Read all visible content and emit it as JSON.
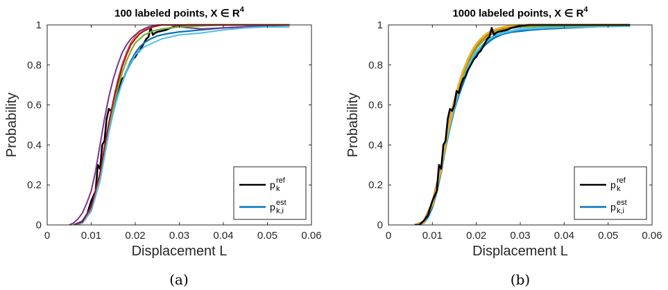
{
  "chart_data": [
    {
      "type": "line",
      "title": "100 labeled points, X ∈ R",
      "title_sup": "4",
      "xlabel": "Displacement L",
      "ylabel": "Probability",
      "caption": "(a)",
      "xlim": [
        0,
        0.06
      ],
      "ylim": [
        0,
        1
      ],
      "xticks": [
        "0",
        "0.01",
        "0.02",
        "0.03",
        "0.04",
        "0.05",
        "0.06"
      ],
      "yticks": [
        "0",
        "0.2",
        "0.4",
        "0.6",
        "0.8",
        "1"
      ],
      "grid": false,
      "legend_placement": "bottom-right",
      "legend": [
        {
          "base": "p",
          "sup": "ref",
          "sub": "k",
          "color": "#000000"
        },
        {
          "base": "p",
          "sup": "est",
          "sub": "k,i",
          "color": "#0072BD"
        }
      ],
      "series": [
        {
          "name": "p_k^ref",
          "color": "#000000",
          "width": 2.6,
          "x": [
            0.006,
            0.007,
            0.008,
            0.009,
            0.01,
            0.011,
            0.0115,
            0.012,
            0.0125,
            0.013,
            0.0135,
            0.014,
            0.0145,
            0.015,
            0.0155,
            0.016,
            0.0165,
            0.017,
            0.0175,
            0.018,
            0.0185,
            0.019,
            0.0195,
            0.02,
            0.0205,
            0.021,
            0.0215,
            0.022,
            0.0225,
            0.023,
            0.0235,
            0.024,
            0.0245,
            0.025,
            0.026,
            0.027,
            0.028,
            0.029,
            0.03,
            0.032,
            0.035,
            0.04,
            0.045,
            0.05,
            0.055
          ],
          "y": [
            0.0,
            0.0,
            0.02,
            0.05,
            0.12,
            0.17,
            0.3,
            0.28,
            0.4,
            0.42,
            0.53,
            0.58,
            0.57,
            0.6,
            0.67,
            0.66,
            0.7,
            0.73,
            0.74,
            0.77,
            0.79,
            0.81,
            0.83,
            0.84,
            0.86,
            0.87,
            0.89,
            0.91,
            0.93,
            0.94,
            0.985,
            0.95,
            0.96,
            0.965,
            0.97,
            0.975,
            0.985,
            0.99,
            0.995,
            1.0,
            1.0,
            1.0,
            1.0,
            1.0,
            1.0
          ]
        },
        {
          "name": "p_k,i^est",
          "color": "#0072BD",
          "width": 2.2,
          "x": [
            0.006,
            0.008,
            0.01,
            0.012,
            0.013,
            0.014,
            0.015,
            0.016,
            0.017,
            0.018,
            0.019,
            0.02,
            0.021,
            0.022,
            0.023,
            0.024,
            0.025,
            0.027,
            0.03,
            0.035,
            0.04,
            0.045,
            0.05,
            0.055
          ],
          "y": [
            0.0,
            0.02,
            0.09,
            0.25,
            0.38,
            0.49,
            0.58,
            0.65,
            0.71,
            0.77,
            0.82,
            0.86,
            0.89,
            0.91,
            0.925,
            0.935,
            0.945,
            0.955,
            0.965,
            0.975,
            0.985,
            0.99,
            0.995,
            1.0
          ]
        },
        {
          "name": "",
          "color": "#D95319",
          "width": 2.2,
          "x": [
            0.006,
            0.008,
            0.01,
            0.012,
            0.013,
            0.014,
            0.015,
            0.016,
            0.017,
            0.018,
            0.019,
            0.02,
            0.021,
            0.022,
            0.023,
            0.024,
            0.025,
            0.027,
            0.03,
            0.035,
            0.04,
            0.055
          ],
          "y": [
            0.0,
            0.01,
            0.08,
            0.24,
            0.37,
            0.5,
            0.62,
            0.72,
            0.8,
            0.86,
            0.91,
            0.94,
            0.965,
            0.98,
            0.99,
            0.995,
            1.0,
            1.0,
            1.0,
            1.0,
            1.0,
            1.0
          ]
        },
        {
          "name": "",
          "color": "#EDB120",
          "width": 2.2,
          "x": [
            0.006,
            0.008,
            0.01,
            0.012,
            0.013,
            0.014,
            0.015,
            0.016,
            0.017,
            0.018,
            0.019,
            0.02,
            0.021,
            0.022,
            0.023,
            0.024,
            0.026,
            0.03,
            0.035,
            0.055
          ],
          "y": [
            0.0,
            0.01,
            0.07,
            0.22,
            0.35,
            0.48,
            0.6,
            0.7,
            0.79,
            0.85,
            0.9,
            0.935,
            0.96,
            0.975,
            0.985,
            0.99,
            1.0,
            1.0,
            1.0,
            1.0
          ]
        },
        {
          "name": "",
          "color": "#7E2F8E",
          "width": 2.0,
          "x": [
            0.005,
            0.006,
            0.007,
            0.008,
            0.009,
            0.01,
            0.011,
            0.012,
            0.013,
            0.014,
            0.015,
            0.016,
            0.017,
            0.018,
            0.019,
            0.02,
            0.021,
            0.022,
            0.023,
            0.024,
            0.026,
            0.028,
            0.03,
            0.035,
            0.04,
            0.045,
            0.05,
            0.055
          ],
          "y": [
            0.0,
            0.01,
            0.03,
            0.06,
            0.11,
            0.17,
            0.27,
            0.4,
            0.53,
            0.64,
            0.73,
            0.8,
            0.86,
            0.9,
            0.93,
            0.95,
            0.97,
            0.98,
            0.99,
            0.995,
            1.0,
            1.0,
            0.99,
            0.98,
            0.985,
            0.99,
            0.99,
            0.99
          ]
        },
        {
          "name": "",
          "color": "#77AC30",
          "width": 2.2,
          "x": [
            0.006,
            0.008,
            0.01,
            0.012,
            0.013,
            0.014,
            0.015,
            0.016,
            0.017,
            0.018,
            0.019,
            0.02,
            0.021,
            0.022,
            0.023,
            0.024,
            0.026,
            0.03,
            0.035,
            0.04,
            0.055
          ],
          "y": [
            0.0,
            0.01,
            0.07,
            0.23,
            0.36,
            0.48,
            0.59,
            0.68,
            0.76,
            0.82,
            0.87,
            0.91,
            0.93,
            0.95,
            0.96,
            0.97,
            0.98,
            0.99,
            0.995,
            1.0,
            1.0
          ]
        },
        {
          "name": "",
          "color": "#4DBEEE",
          "width": 2.0,
          "x": [
            0.006,
            0.008,
            0.01,
            0.012,
            0.013,
            0.014,
            0.015,
            0.016,
            0.017,
            0.018,
            0.019,
            0.02,
            0.021,
            0.022,
            0.023,
            0.024,
            0.025,
            0.026,
            0.027,
            0.028,
            0.03,
            0.035,
            0.04,
            0.045,
            0.05,
            0.055
          ],
          "y": [
            0.0,
            0.01,
            0.07,
            0.22,
            0.34,
            0.46,
            0.56,
            0.64,
            0.71,
            0.77,
            0.81,
            0.85,
            0.87,
            0.89,
            0.9,
            0.91,
            0.92,
            0.93,
            0.935,
            0.94,
            0.95,
            0.96,
            0.975,
            0.985,
            0.99,
            0.99
          ]
        },
        {
          "name": "",
          "color": "#A2142F",
          "width": 2.0,
          "x": [
            0.006,
            0.008,
            0.01,
            0.012,
            0.013,
            0.014,
            0.015,
            0.016,
            0.017,
            0.018,
            0.019,
            0.02,
            0.021,
            0.022,
            0.023,
            0.024,
            0.026,
            0.03,
            0.035,
            0.055
          ],
          "y": [
            0.0,
            0.015,
            0.09,
            0.26,
            0.39,
            0.51,
            0.62,
            0.71,
            0.79,
            0.85,
            0.9,
            0.93,
            0.955,
            0.97,
            0.98,
            0.99,
            1.0,
            1.0,
            1.0,
            1.0
          ]
        }
      ]
    },
    {
      "type": "line",
      "title": "1000 labeled points, X ∈ R",
      "title_sup": "4",
      "xlabel": "Displacement L",
      "ylabel": "Probability",
      "caption": "(b)",
      "xlim": [
        0,
        0.06
      ],
      "ylim": [
        0,
        1
      ],
      "xticks": [
        "0",
        "0.01",
        "0.02",
        "0.03",
        "0.04",
        "0.05",
        "0.06"
      ],
      "yticks": [
        "0",
        "0.2",
        "0.4",
        "0.6",
        "0.8",
        "1"
      ],
      "grid": false,
      "legend_placement": "bottom-right",
      "legend": [
        {
          "base": "p",
          "sup": "ref",
          "sub": "k",
          "color": "#000000"
        },
        {
          "base": "p",
          "sup": "est",
          "sub": "k,i",
          "color": "#0072BD"
        }
      ],
      "series": [
        {
          "name": "p_k,i^est",
          "color": "#0072BD",
          "width": 3.0,
          "x": [
            0.006,
            0.008,
            0.009,
            0.01,
            0.011,
            0.012,
            0.013,
            0.014,
            0.015,
            0.016,
            0.017,
            0.018,
            0.019,
            0.02,
            0.021,
            0.022,
            0.023,
            0.024,
            0.025,
            0.026,
            0.028,
            0.03,
            0.032,
            0.035,
            0.04,
            0.045,
            0.05,
            0.055
          ],
          "y": [
            0.0,
            0.01,
            0.04,
            0.09,
            0.17,
            0.27,
            0.39,
            0.49,
            0.58,
            0.65,
            0.71,
            0.77,
            0.82,
            0.855,
            0.88,
            0.9,
            0.92,
            0.935,
            0.945,
            0.955,
            0.965,
            0.97,
            0.975,
            0.98,
            0.985,
            0.99,
            0.995,
            0.995
          ]
        },
        {
          "name": "",
          "color": "#4DBEEE",
          "width": 3.0,
          "x": [
            0.006,
            0.008,
            0.01,
            0.012,
            0.013,
            0.014,
            0.015,
            0.016,
            0.017,
            0.018,
            0.019,
            0.02,
            0.021,
            0.022,
            0.023,
            0.024,
            0.026,
            0.028,
            0.03,
            0.035,
            0.04,
            0.055
          ],
          "y": [
            0.0,
            0.012,
            0.1,
            0.28,
            0.4,
            0.5,
            0.59,
            0.665,
            0.73,
            0.785,
            0.83,
            0.865,
            0.89,
            0.91,
            0.93,
            0.945,
            0.96,
            0.97,
            0.978,
            0.985,
            0.99,
            0.995
          ]
        },
        {
          "name": "",
          "color": "#77AC30",
          "width": 3.0,
          "x": [
            0.006,
            0.008,
            0.01,
            0.012,
            0.013,
            0.014,
            0.015,
            0.016,
            0.017,
            0.018,
            0.019,
            0.02,
            0.021,
            0.022,
            0.023,
            0.024,
            0.026,
            0.028,
            0.03,
            0.035,
            0.055
          ],
          "y": [
            0.0,
            0.015,
            0.11,
            0.29,
            0.41,
            0.52,
            0.61,
            0.69,
            0.755,
            0.81,
            0.85,
            0.885,
            0.91,
            0.93,
            0.95,
            0.96,
            0.975,
            0.985,
            0.99,
            0.995,
            1.0
          ]
        },
        {
          "name": "",
          "color": "#D95319",
          "width": 3.0,
          "x": [
            0.006,
            0.008,
            0.01,
            0.012,
            0.013,
            0.014,
            0.015,
            0.016,
            0.017,
            0.018,
            0.019,
            0.02,
            0.021,
            0.022,
            0.023,
            0.024,
            0.026,
            0.028,
            0.03,
            0.035,
            0.055
          ],
          "y": [
            0.0,
            0.015,
            0.11,
            0.29,
            0.42,
            0.53,
            0.62,
            0.7,
            0.77,
            0.82,
            0.865,
            0.9,
            0.925,
            0.945,
            0.96,
            0.972,
            0.985,
            0.993,
            0.997,
            1.0,
            1.0
          ]
        },
        {
          "name": "",
          "color": "#EDB120",
          "width": 3.0,
          "x": [
            0.006,
            0.008,
            0.01,
            0.012,
            0.013,
            0.014,
            0.015,
            0.016,
            0.017,
            0.018,
            0.019,
            0.02,
            0.021,
            0.022,
            0.023,
            0.024,
            0.026,
            0.028,
            0.03,
            0.035,
            0.055
          ],
          "y": [
            0.0,
            0.012,
            0.1,
            0.28,
            0.41,
            0.52,
            0.615,
            0.7,
            0.77,
            0.825,
            0.87,
            0.905,
            0.93,
            0.95,
            0.965,
            0.975,
            0.988,
            0.995,
            1.0,
            1.0,
            1.0
          ]
        },
        {
          "name": "p_k^ref",
          "color": "#000000",
          "width": 2.6,
          "x": [
            0.006,
            0.007,
            0.008,
            0.009,
            0.01,
            0.011,
            0.0115,
            0.012,
            0.0125,
            0.013,
            0.0135,
            0.014,
            0.0145,
            0.015,
            0.0155,
            0.016,
            0.0165,
            0.017,
            0.0175,
            0.018,
            0.0185,
            0.019,
            0.0195,
            0.02,
            0.0205,
            0.021,
            0.0215,
            0.022,
            0.0225,
            0.023,
            0.0235,
            0.024,
            0.0245,
            0.025,
            0.026,
            0.027,
            0.028,
            0.029,
            0.03,
            0.032,
            0.035,
            0.04,
            0.045,
            0.05,
            0.055
          ],
          "y": [
            0.0,
            0.0,
            0.02,
            0.05,
            0.12,
            0.17,
            0.3,
            0.28,
            0.4,
            0.42,
            0.53,
            0.58,
            0.57,
            0.6,
            0.67,
            0.66,
            0.7,
            0.73,
            0.74,
            0.77,
            0.79,
            0.81,
            0.83,
            0.84,
            0.86,
            0.87,
            0.89,
            0.91,
            0.93,
            0.94,
            0.985,
            0.95,
            0.96,
            0.965,
            0.97,
            0.975,
            0.985,
            0.99,
            0.995,
            1.0,
            1.0,
            1.0,
            1.0,
            1.0,
            1.0
          ]
        }
      ]
    }
  ]
}
